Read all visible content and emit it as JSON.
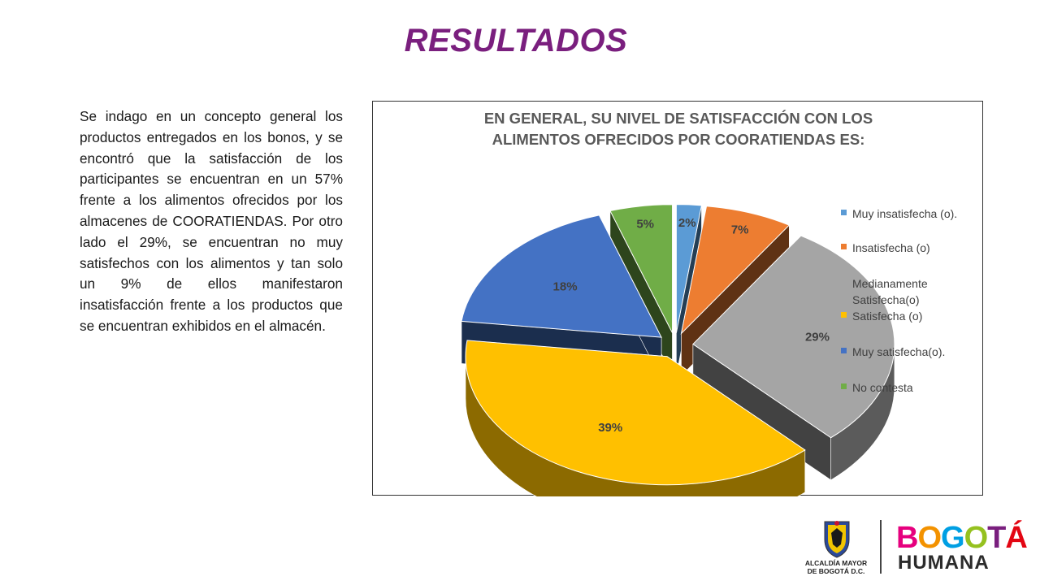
{
  "slide": {
    "title": "RESULTADOS",
    "body": "Se indago en un concepto general los productos entregados en los bonos, y se encontró que la satisfacción de los participantes se encuentran en un 57%  frente a los alimentos ofrecidos por los almacenes de COORATIENDAS. Por otro lado el 29%, se encuentran no muy satisfechos con los alimentos y tan solo un 9% de ellos manifestaron insatisfacción frente a los productos que se encuentran exhibidos en el almacén."
  },
  "chart_data": {
    "type": "pie",
    "title_lines": [
      "EN GENERAL, SU NIVEL DE SATISFACCIÓN CON LOS",
      "ALIMENTOS OFRECIDOS POR COORATIENDAS ES:"
    ],
    "legend_position": "right",
    "slices": [
      {
        "name": "Muy insatisfecha (o).",
        "value": 2,
        "label": "2%",
        "color": "#5b9bd5"
      },
      {
        "name": "Insatisfecha (o)",
        "value": 7,
        "label": "7%",
        "color": "#ed7d31"
      },
      {
        "name": "Medianamente Satisfecha(o)",
        "value": 29,
        "label": "29%",
        "color": "#a5a5a5"
      },
      {
        "name": "Satisfecha (o)",
        "value": 39,
        "label": "39%",
        "color": "#ffc000"
      },
      {
        "name": "Muy satisfecha(o).",
        "value": 18,
        "label": "18%",
        "color": "#4472c4"
      },
      {
        "name": "No contesta",
        "value": 5,
        "label": "5%",
        "color": "#70ad47"
      }
    ]
  },
  "footer": {
    "alcaldia_line1": "ALCALDÍA MAYOR",
    "alcaldia_line2": "DE BOGOTÁ D.C.",
    "brand_word": "BOGOTÁ",
    "brand_word2": "HUMANA",
    "brand_colors": [
      "#e6007e",
      "#f39200",
      "#009fe3",
      "#95c11f",
      "#7a1f7e",
      "#e30613"
    ]
  }
}
